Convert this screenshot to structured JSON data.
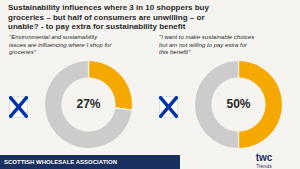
{
  "chart_data": [
    {
      "type": "pie",
      "title": "Sustainability influences where 3 in 10 shoppers buy\ngroceries – but half of consumers are unwilling – or\nunable? - to pay extra for sustainability benefit",
      "subtitle": "\"Environmental and sustainability\nissues are influencing where I shop for\ngroceries\"",
      "values": [
        27,
        73
      ],
      "colors": [
        "#f5a800",
        "#cccccc"
      ],
      "annotations": [
        "27%",
        "SCOTTISH WHOLESALE ASSOCIATION",
        "twc",
        "Trends"
      ]
    },
    {
      "type": "pie",
      "subtitle": "\"I want to make sustainable choices\nbut am not willing to pay extra for\nthis benefit\"",
      "values": [
        50,
        50
      ],
      "colors": [
        "#f5a800",
        "#cccccc"
      ],
      "annotations": [
        "50%"
      ]
    }
  ]
}
